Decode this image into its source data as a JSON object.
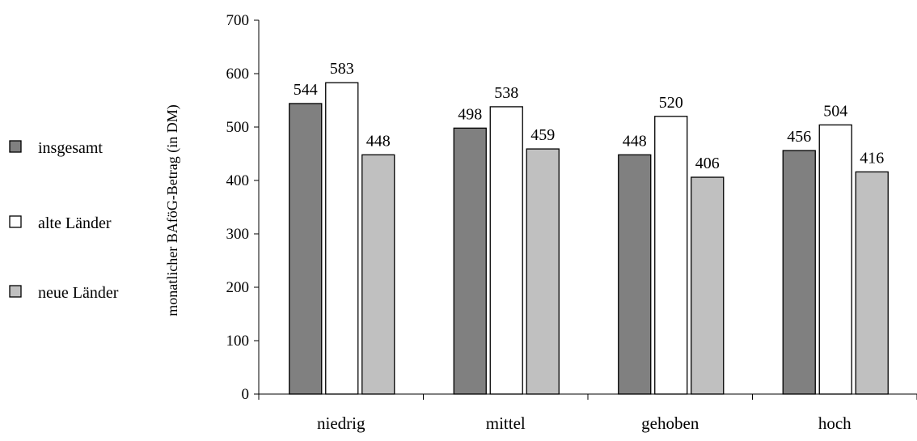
{
  "chart_data": {
    "type": "bar",
    "categories": [
      "niedrig",
      "mittel",
      "gehoben",
      "hoch"
    ],
    "series": [
      {
        "name": "insgesamt",
        "color": "#808080",
        "values": [
          544,
          498,
          448,
          456
        ]
      },
      {
        "name": "alte Länder",
        "color": "#ffffff",
        "values": [
          583,
          538,
          520,
          504
        ]
      },
      {
        "name": "neue Länder",
        "color": "#c0c0c0",
        "values": [
          448,
          459,
          406,
          416
        ]
      }
    ],
    "ylabel": "monatlicher BAföG-Betrag (in DM)",
    "xlabel": "",
    "ylim": [
      0,
      700
    ],
    "yticks": [
      0,
      100,
      200,
      300,
      400,
      500,
      600,
      700
    ],
    "legend_position": "left",
    "grid": false
  }
}
